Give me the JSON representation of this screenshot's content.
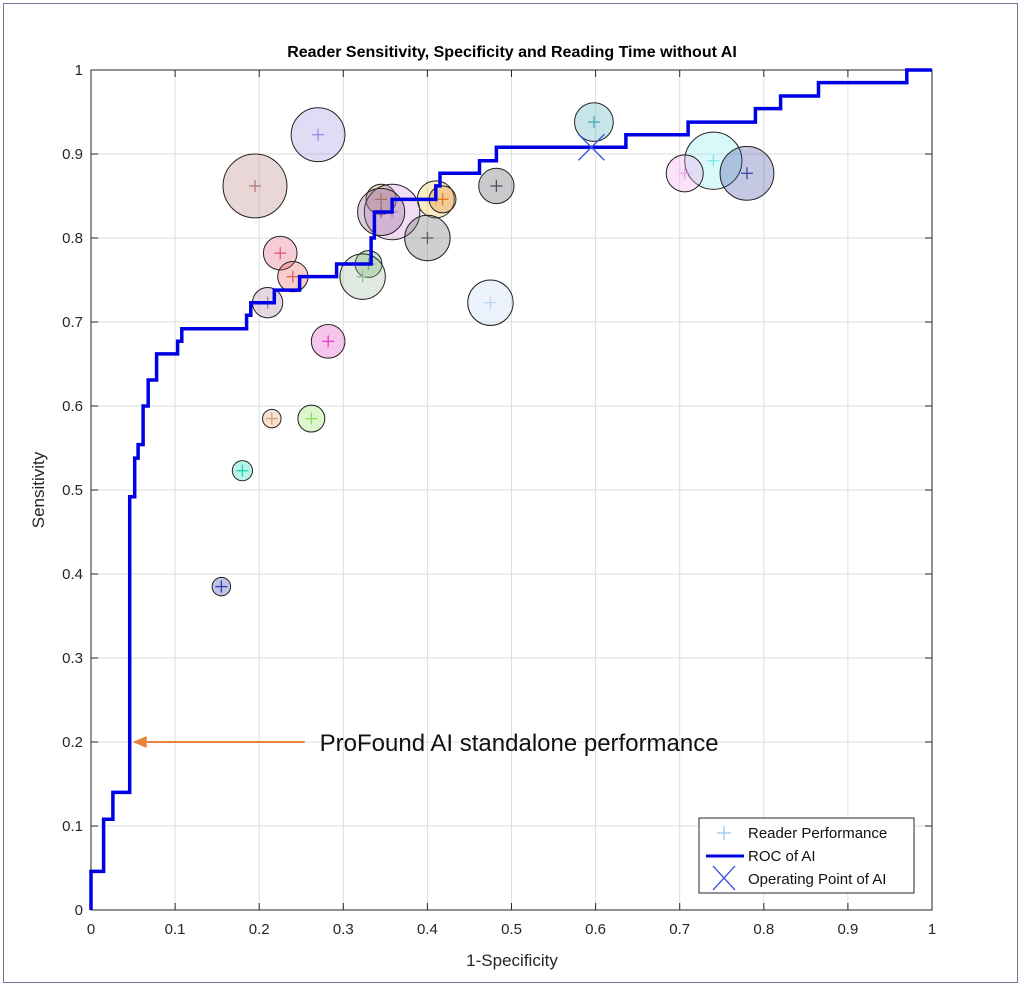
{
  "chart_data": {
    "type": "scatter",
    "title": "Reader Sensitivity, Specificity and Reading Time without AI",
    "xlabel": "1-Specificity",
    "ylabel": "Sensitivity",
    "xlim": [
      0,
      1
    ],
    "ylim": [
      0,
      1
    ],
    "xticks": [
      "0",
      "0.1",
      "0.2",
      "0.3",
      "0.4",
      "0.5",
      "0.6",
      "0.7",
      "0.8",
      "0.9",
      "1"
    ],
    "yticks": [
      "0",
      "0.1",
      "0.2",
      "0.3",
      "0.4",
      "0.5",
      "0.6",
      "0.7",
      "0.8",
      "0.9",
      "1"
    ],
    "grid": true,
    "legend_position": "bottom-right",
    "legend": [
      "Reader Performance",
      "ROC of AI",
      "Operating Point of AI"
    ],
    "annotation": {
      "text": "ProFound AI standalone performance",
      "arrow_target": [
        0.046,
        0.2
      ]
    },
    "roc": {
      "name": "ROC of AI",
      "color": "#0000e6",
      "points": [
        [
          0,
          0
        ],
        [
          0,
          0.046
        ],
        [
          0.015,
          0.046
        ],
        [
          0.015,
          0.108
        ],
        [
          0.026,
          0.108
        ],
        [
          0.026,
          0.14
        ],
        [
          0.046,
          0.14
        ],
        [
          0.046,
          0.492
        ],
        [
          0.052,
          0.492
        ],
        [
          0.052,
          0.538
        ],
        [
          0.056,
          0.538
        ],
        [
          0.056,
          0.554
        ],
        [
          0.062,
          0.554
        ],
        [
          0.062,
          0.6
        ],
        [
          0.068,
          0.6
        ],
        [
          0.068,
          0.631
        ],
        [
          0.078,
          0.631
        ],
        [
          0.078,
          0.662
        ],
        [
          0.103,
          0.662
        ],
        [
          0.103,
          0.677
        ],
        [
          0.108,
          0.677
        ],
        [
          0.108,
          0.692
        ],
        [
          0.185,
          0.692
        ],
        [
          0.185,
          0.708
        ],
        [
          0.19,
          0.708
        ],
        [
          0.19,
          0.723
        ],
        [
          0.218,
          0.723
        ],
        [
          0.218,
          0.738
        ],
        [
          0.248,
          0.738
        ],
        [
          0.248,
          0.754
        ],
        [
          0.292,
          0.754
        ],
        [
          0.292,
          0.769
        ],
        [
          0.333,
          0.769
        ],
        [
          0.333,
          0.8
        ],
        [
          0.337,
          0.8
        ],
        [
          0.337,
          0.831
        ],
        [
          0.358,
          0.831
        ],
        [
          0.358,
          0.846
        ],
        [
          0.41,
          0.846
        ],
        [
          0.41,
          0.862
        ],
        [
          0.415,
          0.862
        ],
        [
          0.415,
          0.877
        ],
        [
          0.462,
          0.877
        ],
        [
          0.462,
          0.892
        ],
        [
          0.482,
          0.892
        ],
        [
          0.482,
          0.908
        ],
        [
          0.636,
          0.908
        ],
        [
          0.636,
          0.923
        ],
        [
          0.71,
          0.923
        ],
        [
          0.71,
          0.938
        ],
        [
          0.79,
          0.938
        ],
        [
          0.79,
          0.954
        ],
        [
          0.82,
          0.954
        ],
        [
          0.82,
          0.969
        ],
        [
          0.865,
          0.969
        ],
        [
          0.865,
          0.985
        ],
        [
          0.97,
          0.985
        ],
        [
          0.97,
          1
        ],
        [
          1,
          1
        ]
      ]
    },
    "operating_point": {
      "name": "Operating Point of AI",
      "x": 0.595,
      "y": 0.908,
      "color": "#3a55e0"
    },
    "readers": [
      {
        "x": 0.27,
        "y": 0.923,
        "r": 0.032,
        "color": "#9a8ce0"
      },
      {
        "x": 0.195,
        "y": 0.862,
        "r": 0.038,
        "color": "#b57a7a"
      },
      {
        "x": 0.598,
        "y": 0.938,
        "r": 0.023,
        "color": "#4aa8b8"
      },
      {
        "x": 0.74,
        "y": 0.892,
        "r": 0.034,
        "color": "#7fe8ef"
      },
      {
        "x": 0.78,
        "y": 0.877,
        "r": 0.032,
        "color": "#3a4aa0"
      },
      {
        "x": 0.706,
        "y": 0.877,
        "r": 0.022,
        "color": "#f2a0e8"
      },
      {
        "x": 0.482,
        "y": 0.862,
        "r": 0.021,
        "color": "#4f4f58"
      },
      {
        "x": 0.345,
        "y": 0.846,
        "r": 0.018,
        "color": "#a07a28"
      },
      {
        "x": 0.41,
        "y": 0.846,
        "r": 0.022,
        "color": "#f0c040"
      },
      {
        "x": 0.418,
        "y": 0.846,
        "r": 0.016,
        "color": "#e07a2a"
      },
      {
        "x": 0.358,
        "y": 0.831,
        "r": 0.033,
        "color": "#d090d8"
      },
      {
        "x": 0.345,
        "y": 0.831,
        "r": 0.028,
        "color": "#8a5a90"
      },
      {
        "x": 0.4,
        "y": 0.8,
        "r": 0.027,
        "color": "#606060"
      },
      {
        "x": 0.225,
        "y": 0.782,
        "r": 0.02,
        "color": "#e05a78"
      },
      {
        "x": 0.24,
        "y": 0.754,
        "r": 0.018,
        "color": "#e85a5a"
      },
      {
        "x": 0.33,
        "y": 0.769,
        "r": 0.016,
        "color": "#5aa85a"
      },
      {
        "x": 0.323,
        "y": 0.754,
        "r": 0.027,
        "color": "#9ab89a"
      },
      {
        "x": 0.21,
        "y": 0.723,
        "r": 0.018,
        "color": "#b07aa0"
      },
      {
        "x": 0.475,
        "y": 0.723,
        "r": 0.027,
        "color": "#bcd4f2"
      },
      {
        "x": 0.282,
        "y": 0.677,
        "r": 0.02,
        "color": "#e040c0"
      },
      {
        "x": 0.215,
        "y": 0.585,
        "r": 0.011,
        "color": "#e0a070"
      },
      {
        "x": 0.262,
        "y": 0.585,
        "r": 0.016,
        "color": "#8ae05a"
      },
      {
        "x": 0.18,
        "y": 0.523,
        "r": 0.012,
        "color": "#1ad6b0"
      },
      {
        "x": 0.155,
        "y": 0.385,
        "r": 0.011,
        "color": "#2a3ab0"
      }
    ]
  }
}
